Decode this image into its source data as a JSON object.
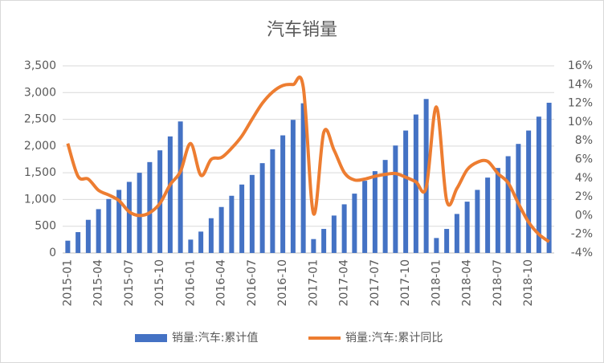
{
  "chart_data": {
    "type": "bar-line",
    "title": "汽车销量",
    "categories": [
      "2015-01",
      null,
      null,
      "2015-04",
      null,
      null,
      "2015-07",
      null,
      null,
      "2015-10",
      null,
      null,
      "2016-01",
      null,
      null,
      "2016-04",
      null,
      null,
      "2016-07",
      null,
      null,
      "2016-10",
      null,
      null,
      "2017-01",
      null,
      null,
      "2017-04",
      null,
      null,
      "2017-07",
      null,
      null,
      "2017-10",
      null,
      null,
      "2018-01",
      null,
      null,
      "2018-04",
      null,
      null,
      "2018-07",
      null,
      null,
      "2018-10",
      null,
      null
    ],
    "series": [
      {
        "name": "销量:汽车:累计值",
        "color": "#4472c4",
        "kind": "bar",
        "values": [
          230,
          390,
          620,
          820,
          1010,
          1180,
          1330,
          1500,
          1700,
          1920,
          2180,
          2460,
          250,
          400,
          650,
          860,
          1070,
          1280,
          1460,
          1680,
          1940,
          2200,
          2490,
          2800,
          260,
          450,
          700,
          910,
          1110,
          1350,
          1530,
          1740,
          2010,
          2290,
          2590,
          2880,
          280,
          450,
          730,
          960,
          1180,
          1410,
          1590,
          1810,
          2040,
          2290,
          2550,
          2810
        ]
      },
      {
        "name": "销量:汽车:累计同比",
        "color": "#ed7d31",
        "kind": "line",
        "axis": "y2",
        "values": [
          7.7,
          4.2,
          3.9,
          2.7,
          2.2,
          1.6,
          0.4,
          0.0,
          0.3,
          1.3,
          3.3,
          4.7,
          7.7,
          4.3,
          6.0,
          6.2,
          7.2,
          8.5,
          10.3,
          12.0,
          13.2,
          13.9,
          14.0,
          13.7,
          0.2,
          8.9,
          7.0,
          4.6,
          3.8,
          3.9,
          4.2,
          4.4,
          4.5,
          4.1,
          3.6,
          3.0,
          11.6,
          1.6,
          2.9,
          4.9,
          5.7,
          5.8,
          4.5,
          3.5,
          1.3,
          -0.7,
          -2.0,
          -2.8
        ]
      }
    ],
    "ylim": [
      0,
      3500
    ],
    "yticks": [
      0,
      500,
      {
        "value": 1000,
        "label": "1,000"
      },
      {
        "value": 1500,
        "label": "1,500"
      },
      {
        "value": 2000,
        "label": "2,000"
      },
      {
        "value": 2500,
        "label": "2,500"
      },
      {
        "value": 3000,
        "label": "3,000"
      },
      {
        "value": 3500,
        "label": "3,500"
      }
    ],
    "y2lim": [
      -4,
      16
    ],
    "y2ticks": [
      {
        "value": -4,
        "label": "-4%"
      },
      {
        "value": -2,
        "label": "-2%"
      },
      {
        "value": 0,
        "label": "0%"
      },
      {
        "value": 2,
        "label": "2%"
      },
      {
        "value": 4,
        "label": "4%"
      },
      {
        "value": 6,
        "label": "6%"
      },
      {
        "value": 8,
        "label": "8%"
      },
      {
        "value": 10,
        "label": "10%"
      },
      {
        "value": 12,
        "label": "12%"
      },
      {
        "value": 14,
        "label": "14%"
      },
      {
        "value": 16,
        "label": "16%"
      }
    ],
    "grid": true,
    "legend": "bottom"
  }
}
